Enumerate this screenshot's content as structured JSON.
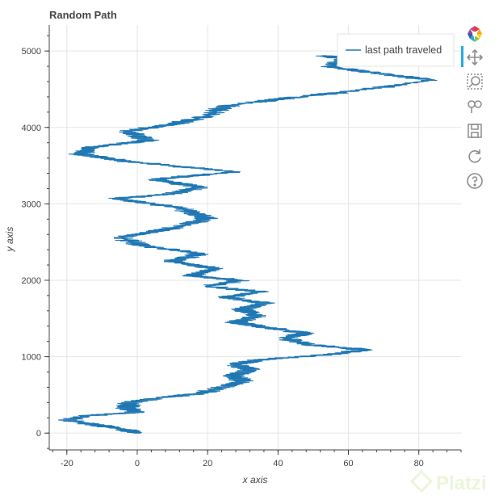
{
  "chart_data": {
    "type": "line",
    "title": "Random Path",
    "xlabel": "x axis",
    "ylabel": "y axis",
    "xlim": [
      -25,
      92
    ],
    "ylim": [
      -220,
      5340
    ],
    "xticks": [
      -20,
      0,
      20,
      40,
      60,
      80
    ],
    "yticks": [
      0,
      1000,
      2000,
      3000,
      4000,
      5000
    ],
    "grid": true,
    "legend_position": "top-right",
    "series": [
      {
        "name": "last path traveled",
        "color": "#1f77b4",
        "waypoints": [
          [
            0,
            0
          ],
          [
            -5,
            60
          ],
          [
            -12,
            110
          ],
          [
            -20,
            170
          ],
          [
            -14,
            230
          ],
          [
            0,
            270
          ],
          [
            -3,
            330
          ],
          [
            -2,
            400
          ],
          [
            6,
            460
          ],
          [
            18,
            520
          ],
          [
            25,
            610
          ],
          [
            30,
            680
          ],
          [
            27,
            750
          ],
          [
            32,
            830
          ],
          [
            28,
            900
          ],
          [
            35,
            960
          ],
          [
            55,
            1030
          ],
          [
            65,
            1090
          ],
          [
            50,
            1150
          ],
          [
            42,
            1240
          ],
          [
            48,
            1310
          ],
          [
            35,
            1390
          ],
          [
            28,
            1450
          ],
          [
            34,
            1530
          ],
          [
            30,
            1620
          ],
          [
            36,
            1700
          ],
          [
            25,
            1780
          ],
          [
            35,
            1850
          ],
          [
            20,
            1920
          ],
          [
            29,
            2000
          ],
          [
            15,
            2060
          ],
          [
            22,
            2150
          ],
          [
            10,
            2250
          ],
          [
            18,
            2350
          ],
          [
            2,
            2450
          ],
          [
            -5,
            2560
          ],
          [
            10,
            2680
          ],
          [
            20,
            2810
          ],
          [
            12,
            2950
          ],
          [
            -6,
            3070
          ],
          [
            10,
            3130
          ],
          [
            18,
            3220
          ],
          [
            5,
            3320
          ],
          [
            28,
            3420
          ],
          [
            -4,
            3560
          ],
          [
            -16,
            3650
          ],
          [
            -13,
            3740
          ],
          [
            3,
            3830
          ],
          [
            -3,
            3950
          ],
          [
            10,
            4040
          ],
          [
            20,
            4150
          ],
          [
            25,
            4280
          ],
          [
            42,
            4380
          ],
          [
            62,
            4480
          ],
          [
            84,
            4620
          ],
          [
            70,
            4700
          ],
          [
            55,
            4790
          ],
          [
            58,
            4900
          ],
          [
            53,
            4940
          ]
        ]
      }
    ]
  },
  "toolbar": {
    "tools": [
      "bokeh-logo",
      "pan-icon",
      "box-zoom-icon",
      "wheel-zoom-icon",
      "save-icon",
      "reset-icon",
      "help-icon"
    ]
  },
  "watermark": "Platzi"
}
